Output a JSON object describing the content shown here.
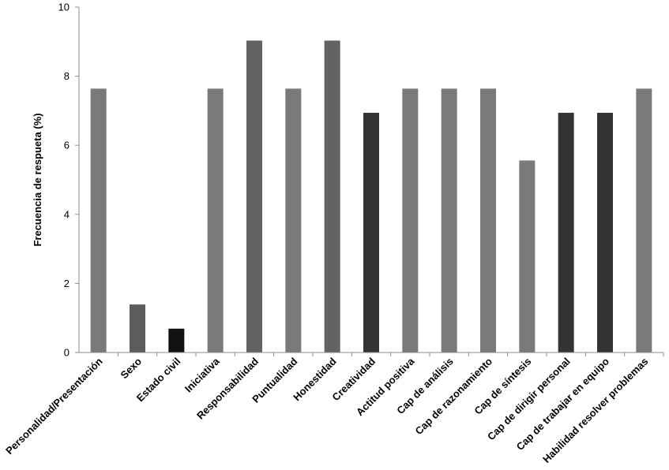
{
  "chart_data": {
    "type": "bar",
    "title": "",
    "xlabel": "",
    "ylabel": "Frecuencia de respueta (%)",
    "ylim": [
      0,
      10
    ],
    "yticks": [
      0,
      2,
      4,
      6,
      8,
      10
    ],
    "grid": false,
    "legend": "none",
    "categories": [
      "Personalidad/Presentación",
      "Sexo",
      "Estado civil",
      "Iniciativa",
      "Responsabilidad",
      "Puntualidad",
      "Honestidad",
      "Creatividad",
      "Actitud positiva",
      "Cap de análisis",
      "Cap de razonamiento",
      "Cap de síntesis",
      "Cap de dirigir personal",
      "Cap de trabajar en equipo",
      "Habilidad resolver problemas"
    ],
    "values": [
      7.64,
      1.39,
      0.69,
      7.64,
      9.03,
      7.64,
      9.03,
      6.94,
      7.64,
      7.64,
      7.64,
      5.56,
      6.94,
      6.94,
      7.64
    ],
    "bar_colors": [
      "#7a7a7a",
      "#5c5c5c",
      "#111111",
      "#7a7a7a",
      "#636363",
      "#7a7a7a",
      "#636363",
      "#333333",
      "#7a7a7a",
      "#7a7a7a",
      "#7a7a7a",
      "#7a7a7a",
      "#333333",
      "#333333",
      "#7a7a7a"
    ]
  }
}
